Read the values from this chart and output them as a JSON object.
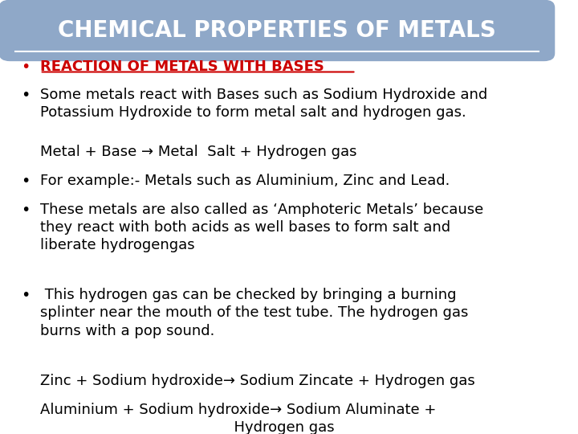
{
  "title": "CHEMICAL PROPERTIES OF METALS",
  "title_bg_color": "#8fa8c8",
  "title_text_color": "#ffffff",
  "bg_color": "#ffffff",
  "bullet_color": "#000000",
  "heading_color": "#cc0000",
  "heading_text": "REACTION OF METALS WITH BASES",
  "bullets": [
    {
      "type": "heading",
      "text": "REACTION OF METALS WITH BASES",
      "color": "#cc0000",
      "underline": true,
      "bold": true,
      "fontsize": 13
    },
    {
      "type": "bullet",
      "text": "Some metals react with Bases such as Sodium Hydroxide and\nPotassium Hydroxide to form metal salt and hydrogen gas.",
      "color": "#000000",
      "bold": false,
      "fontsize": 13
    },
    {
      "type": "indent",
      "text": "Metal + Base → Metal  Salt + Hydrogen gas",
      "color": "#000000",
      "bold": false,
      "fontsize": 13
    },
    {
      "type": "bullet",
      "text": "For example:- Metals such as Aluminium, Zinc and Lead.",
      "color": "#000000",
      "bold": false,
      "fontsize": 13
    },
    {
      "type": "bullet",
      "text": "These metals are also called as ‘Amphoteric Metals’ because\nthey react with both acids as well bases to form salt and\nliberate hydrogengas",
      "color": "#000000",
      "bold": false,
      "fontsize": 13
    },
    {
      "type": "bullet",
      "text": " This hydrogen gas can be checked by bringing a burning\nsplinter near the mouth of the test tube. The hydrogen gas\nburns with a pop sound.",
      "color": "#000000",
      "bold": false,
      "fontsize": 13
    },
    {
      "type": "indent",
      "text": "Zinc + Sodium hydroxide→ Sodium Zincate + Hydrogen gas",
      "color": "#000000",
      "bold": false,
      "fontsize": 13
    },
    {
      "type": "indent",
      "text": "Aluminium + Sodium hydroxide→ Sodium Aluminate +\n                                          Hydrogen gas",
      "color": "#000000",
      "bold": false,
      "fontsize": 13
    }
  ]
}
